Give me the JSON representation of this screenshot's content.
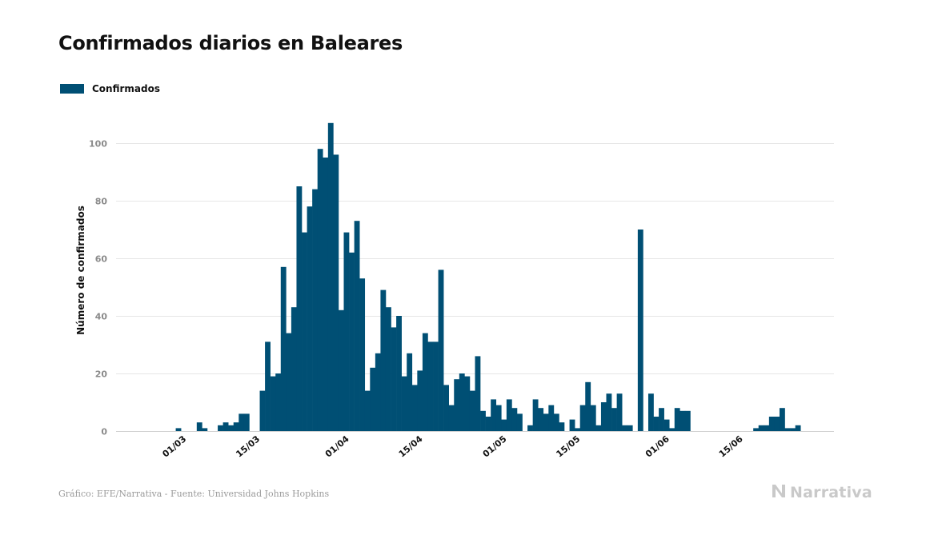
{
  "title": "Confirmados diarios en Baleares",
  "legend": {
    "label": "Confirmados",
    "color": "#004f74"
  },
  "source": "Gráfico: EFE/Narrativa - Fuente: Universidad Johns Hopkins",
  "brand": {
    "label": "Narrativa",
    "icon": "narrativa-logo-icon"
  },
  "colors": {
    "bar": "#004f74",
    "grid": "#e6e6e6",
    "tick": "#8a8a8a",
    "ylabel": "#111111"
  },
  "chart_data": {
    "type": "bar",
    "title": "Confirmados diarios en Baleares",
    "ylabel": "Número de confirmados",
    "xlabel": "",
    "ylim": [
      0,
      112
    ],
    "yticks": [
      0,
      20,
      40,
      60,
      80,
      100
    ],
    "grid": true,
    "legend_position": "top-left",
    "x_start": "2020-02-23",
    "xticks": [
      {
        "date": "2020-03-01",
        "label": "01/03"
      },
      {
        "date": "2020-03-15",
        "label": "15/03"
      },
      {
        "date": "2020-04-01",
        "label": "01/04"
      },
      {
        "date": "2020-04-15",
        "label": "15/04"
      },
      {
        "date": "2020-05-01",
        "label": "01/05"
      },
      {
        "date": "2020-05-15",
        "label": "15/05"
      },
      {
        "date": "2020-06-01",
        "label": "01/06"
      },
      {
        "date": "2020-06-15",
        "label": "15/06"
      }
    ],
    "series": [
      {
        "name": "Confirmados",
        "values": [
          0,
          0,
          0,
          0,
          0,
          0,
          1,
          0,
          0,
          0,
          3,
          1,
          0,
          0,
          2,
          3,
          2,
          3,
          6,
          6,
          0,
          0,
          14,
          31,
          19,
          20,
          57,
          34,
          43,
          85,
          69,
          78,
          84,
          98,
          95,
          107,
          96,
          42,
          69,
          62,
          73,
          53,
          14,
          22,
          27,
          49,
          43,
          36,
          40,
          19,
          27,
          16,
          21,
          34,
          31,
          31,
          56,
          16,
          9,
          18,
          20,
          19,
          14,
          26,
          7,
          5,
          11,
          9,
          4,
          11,
          8,
          6,
          0,
          2,
          11,
          8,
          6,
          9,
          6,
          3,
          0,
          4,
          1,
          9,
          17,
          9,
          2,
          10,
          13,
          8,
          13,
          2,
          2,
          0,
          70,
          0,
          13,
          5,
          8,
          4,
          1,
          8,
          7,
          7,
          0,
          0,
          0,
          0,
          0,
          0,
          0,
          0,
          0,
          0,
          0,
          0,
          1,
          2,
          2,
          5,
          5,
          8,
          1,
          1,
          2
        ]
      }
    ]
  }
}
